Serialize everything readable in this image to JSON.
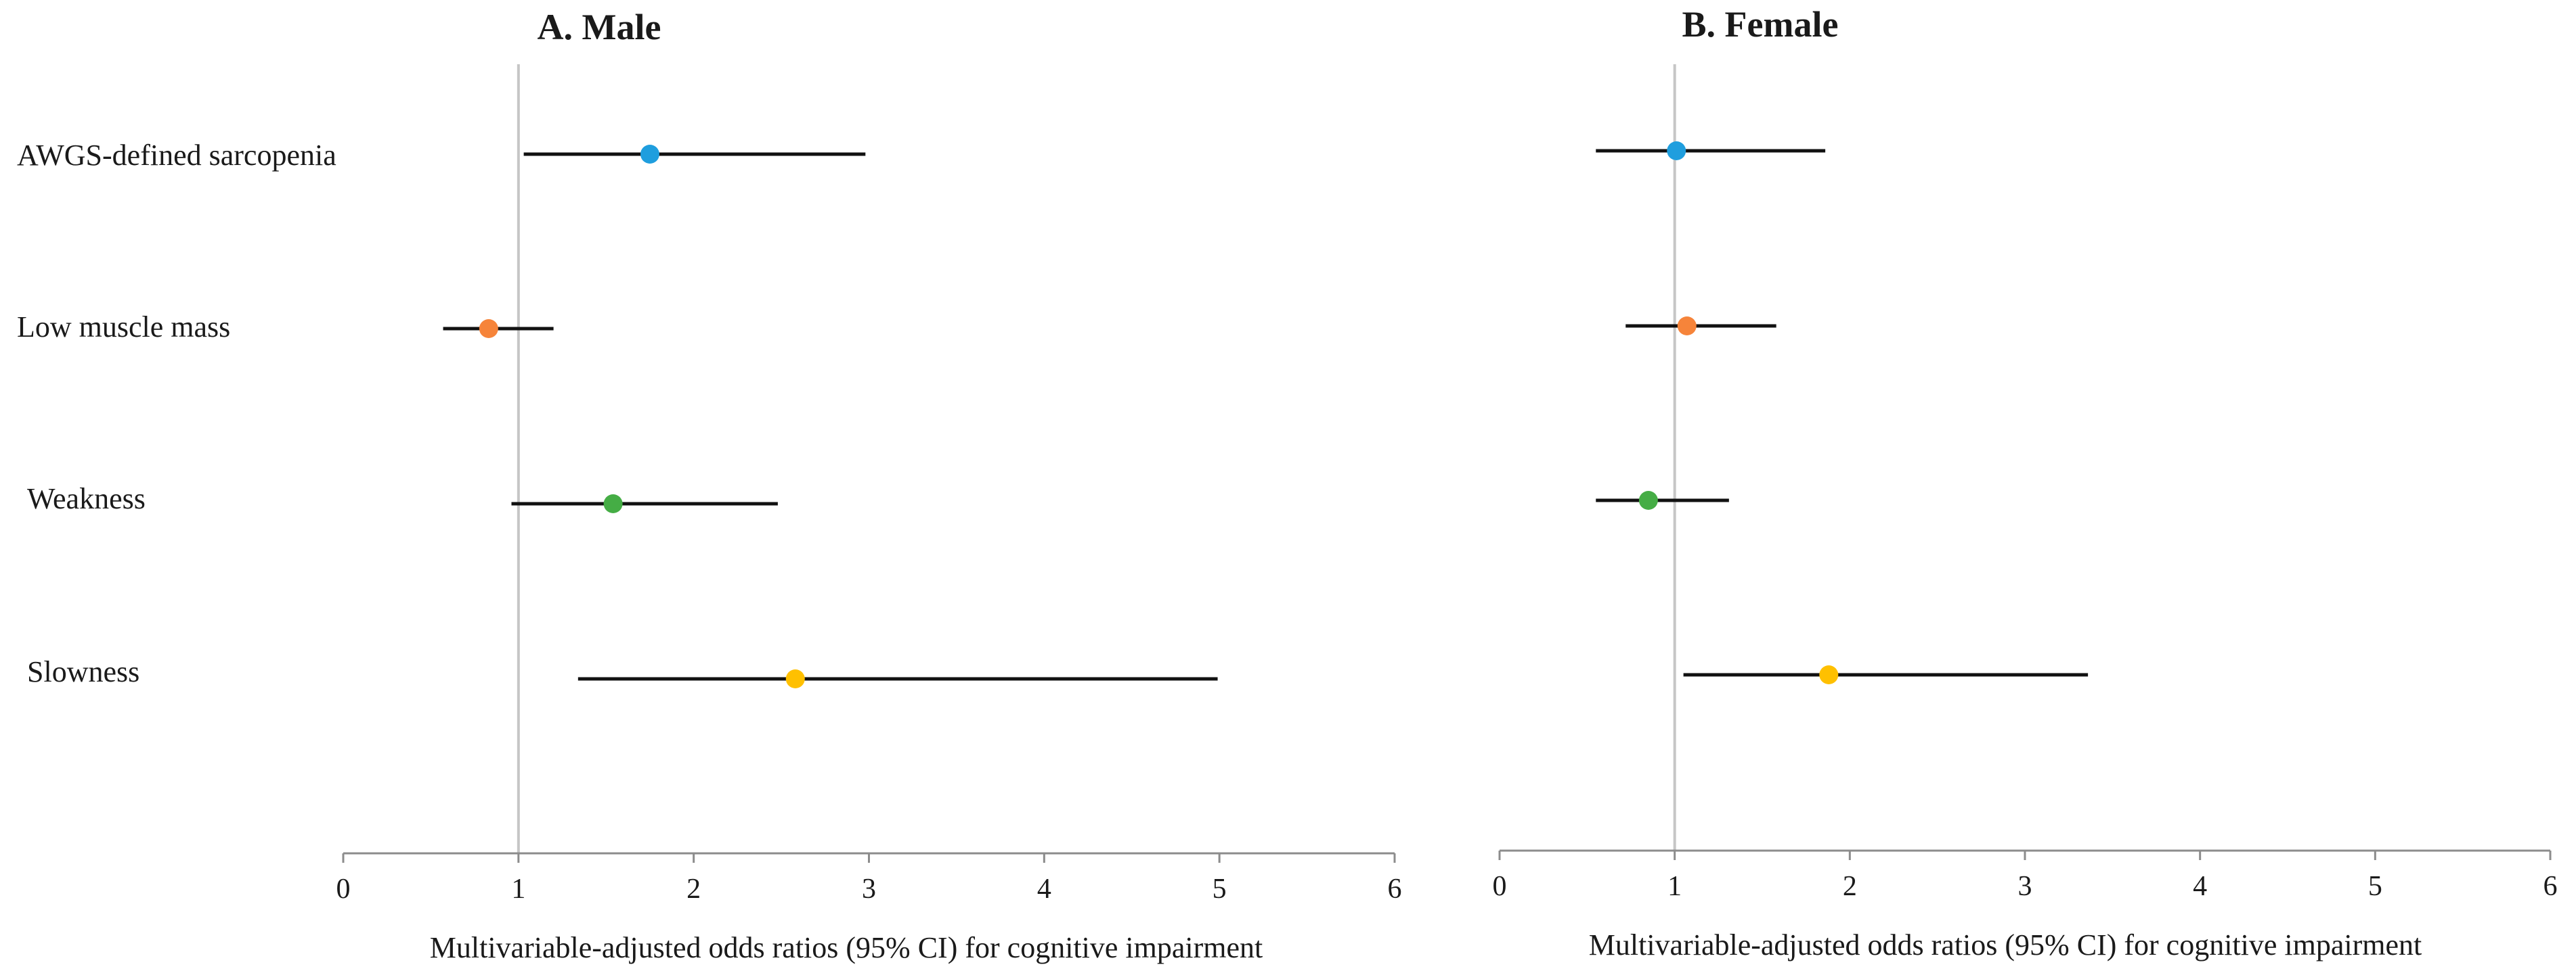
{
  "chart_data": [
    {
      "type": "forest",
      "title": "A. Male",
      "xlabel": "Multivariable-adjusted odds ratios (95% CI) for cognitive impairment",
      "xlim": [
        0,
        6
      ],
      "xticks": [
        0,
        1,
        2,
        3,
        4,
        5,
        6
      ],
      "reference_line": 1,
      "categories": [
        "AWGS-defined sarcopenia",
        "Low muscle mass",
        "Weakness",
        "Slowness"
      ],
      "series": [
        {
          "name": "AWGS-defined sarcopenia",
          "or": 1.75,
          "lower": 1.03,
          "upper": 2.98,
          "color": "#1f9ede"
        },
        {
          "name": "Low muscle mass",
          "or": 0.83,
          "lower": 0.57,
          "upper": 1.2,
          "color": "#f6843a"
        },
        {
          "name": "Weakness",
          "or": 1.54,
          "lower": 0.96,
          "upper": 2.48,
          "color": "#45ad45"
        },
        {
          "name": "Slowness",
          "or": 2.58,
          "lower": 1.34,
          "upper": 4.99,
          "color": "#ffc000"
        }
      ]
    },
    {
      "type": "forest",
      "title": "B. Female",
      "xlabel": "Multivariable-adjusted odds ratios (95% CI) for cognitive impairment",
      "xlim": [
        0,
        6
      ],
      "xticks": [
        0,
        1,
        2,
        3,
        4,
        5,
        6
      ],
      "reference_line": 1,
      "categories": [
        "AWGS-defined sarcopenia",
        "Low muscle mass",
        "Weakness",
        "Slowness"
      ],
      "series": [
        {
          "name": "AWGS-defined sarcopenia",
          "or": 1.01,
          "lower": 0.55,
          "upper": 1.86,
          "color": "#1f9ede"
        },
        {
          "name": "Low muscle mass",
          "or": 1.07,
          "lower": 0.72,
          "upper": 1.58,
          "color": "#f6843a"
        },
        {
          "name": "Weakness",
          "or": 0.85,
          "lower": 0.55,
          "upper": 1.31,
          "color": "#45ad45"
        },
        {
          "name": "Slowness",
          "or": 1.88,
          "lower": 1.05,
          "upper": 3.36,
          "color": "#ffc000"
        }
      ]
    }
  ]
}
